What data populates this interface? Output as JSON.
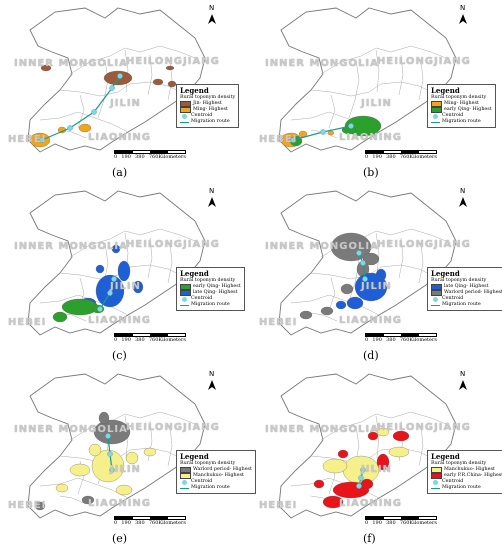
{
  "labels": {
    "inner_mongolia": "INNER MONGOLIA",
    "heilongjiang": "HEILONGJIANG",
    "jilin": "JILIN",
    "hebei": "HEBEI",
    "liaoning": "LIAONING",
    "north": "N"
  },
  "legend_title": "Legend",
  "legend_subtitle": "Rural toponym density",
  "centroid_label": "Centroid",
  "migration_label": "Migration route",
  "scale": {
    "ticks": [
      "0",
      "190",
      "380",
      "760"
    ],
    "unit": "Kilometers"
  },
  "colors": {
    "jin": "#9b5a3c",
    "ming": "#f2a51a",
    "early_qing": "#2ca02c",
    "late_qing": "#1f5fd6",
    "warlord": "#7a7a7a",
    "manchukuo": "#f5f08c",
    "prc": "#e8141a",
    "centroid": "#7fd6e6",
    "route": "#1a9b8a"
  },
  "panels": [
    {
      "caption": "(a)",
      "legend": [
        {
          "label": "Jin- Highest",
          "color": "jin"
        },
        {
          "label": "Ming- Highest",
          "color": "ming"
        }
      ]
    },
    {
      "caption": "(b)",
      "legend": [
        {
          "label": "Ming- Highest",
          "color": "ming"
        },
        {
          "label": "early Qing- Highest",
          "color": "early_qing"
        }
      ]
    },
    {
      "caption": "(c)",
      "legend": [
        {
          "label": "early Qing- Highest",
          "color": "early_qing"
        },
        {
          "label": "late Qing- Highest",
          "color": "late_qing"
        }
      ]
    },
    {
      "caption": "(d)",
      "legend": [
        {
          "label": "late Qing- Highest",
          "color": "late_qing"
        },
        {
          "label": "Warlord period- Highest",
          "color": "warlord"
        }
      ]
    },
    {
      "caption": "(e)",
      "legend": [
        {
          "label": "Warlord period- Highest",
          "color": "warlord"
        },
        {
          "label": "Manchukuo- Highest",
          "color": "manchukuo"
        }
      ]
    },
    {
      "caption": "(f)",
      "legend": [
        {
          "label": "Manchukuo- Highest",
          "color": "manchukuo"
        },
        {
          "label": "early P.R.China- Highest",
          "color": "prc"
        }
      ]
    }
  ]
}
